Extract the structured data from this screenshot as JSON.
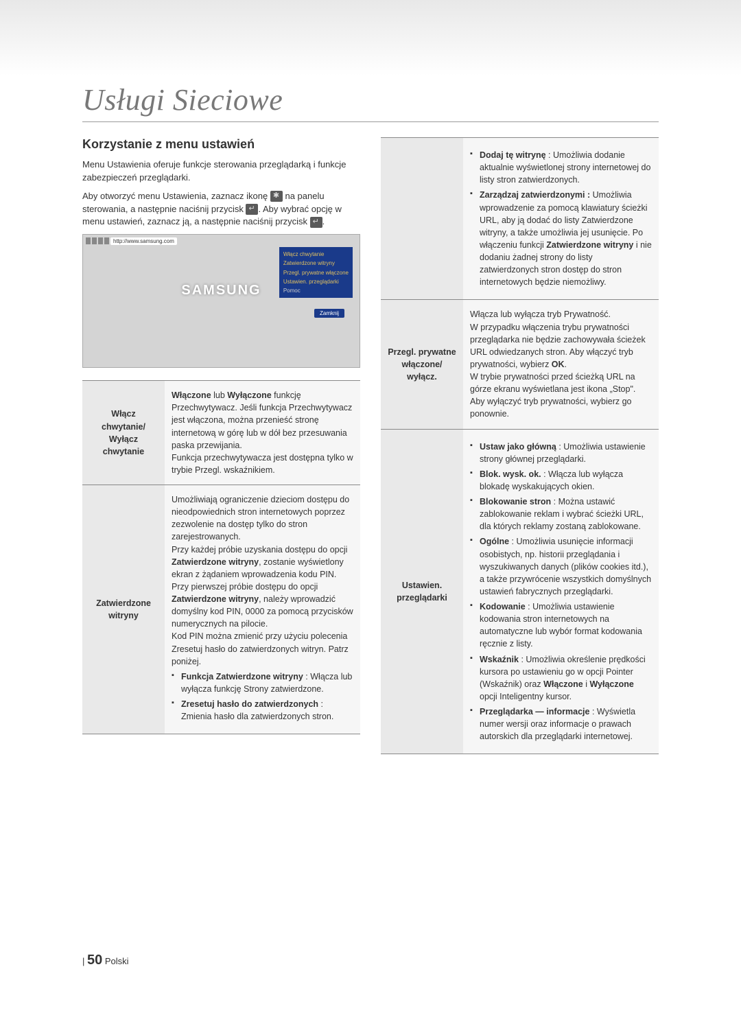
{
  "title": "Usługi Sieciowe",
  "subheading": "Korzystanie z menu ustawień",
  "intro": {
    "p1": "Menu Ustawienia oferuje funkcje sterowania przeglądarką i funkcje zabezpieczeń przeglądarki.",
    "p2a": "Aby otworzyć menu Ustawienia, zaznacz ikonę ",
    "p2b": " na panelu sterowania, a następnie naciśnij przycisk ",
    "p2c": ". Aby wybrać opcję w menu ustawień, zaznacz ją, a następnie naciśnij przycisk ",
    "p2d": "."
  },
  "browser": {
    "url": "http://www.samsung.com",
    "logo": "SAMSUNG",
    "menu_items": [
      "Włącz chwytanie",
      "Zatwierdzone witryny",
      "Przegl. prywatne włączone",
      "Ustawien. przeglądarki",
      "Pomoc"
    ],
    "close": "Zamknij"
  },
  "left_table": {
    "row1": {
      "label": "Włącz chwytanie/ Wyłącz chwytanie",
      "c1a": "Włączone",
      "c1b": " lub ",
      "c1c": "Wyłączone",
      "c1d": " funkcję Przechwytywacz. Jeśli funkcja Przechwytywacz jest włączona, można przenieść stronę internetową w górę lub w dół bez przesuwania paska przewijania.",
      "c2": "Funkcja przechwytywacza jest dostępna tylko w trybie Przegl. wskaźnikiem."
    },
    "row2": {
      "label": "Zatwierdzone witryny",
      "c1": "Umożliwiają ograniczenie dzieciom dostępu do nieodpowiednich stron internetowych poprzez zezwolenie na dostęp tylko do stron zarejestrowanych.",
      "c2a": "Przy każdej próbie uzyskania dostępu do opcji ",
      "c2b": "Zatwierdzone witryny",
      "c2c": ", zostanie wyświetlony ekran z żądaniem wprowadzenia kodu PIN. Przy pierwszej próbie dostępu do opcji ",
      "c2d": "Zatwierdzone witryny",
      "c2e": ", należy wprowadzić domyślny kod PIN, 0000 za pomocą przycisków numerycznych na pilocie.",
      "c3": "Kod PIN można zmienić przy użyciu polecenia Zresetuj hasło do zatwierdzonych witryn. Patrz poniżej.",
      "b1_label": "Funkcja Zatwierdzone witryny",
      "b1_text": " : Włącza lub wyłącza funkcję Strony zatwierdzone.",
      "b2_label": "Zresetuj hasło do zatwierdzonych",
      "b2_text": " : Zmienia hasło dla zatwierdzonych stron."
    }
  },
  "right_table": {
    "row1": {
      "label": "",
      "b1_label": "Dodaj tę witrynę",
      "b1_text": " : Umożliwia dodanie aktualnie wyświetlonej strony internetowej do listy stron zatwierdzonych.",
      "b2_label": "Zarządzaj zatwierdzonymi :",
      "b2_texta": " Umożliwia wprowadzenie za pomocą klawiatury ścieżki URL, aby ją dodać do listy Zatwierdzone witryny, a także umożliwia jej usunięcie. Po włączeniu funkcji ",
      "b2_textb": "Zatwierdzone witryny",
      "b2_textc": " i nie dodaniu żadnej strony do listy zatwierdzonych stron dostęp do stron internetowych będzie niemożliwy."
    },
    "row2": {
      "label": "Przegl. prywatne włączone/ wyłącz.",
      "c1": "Włącza lub wyłącza tryb Prywatność.",
      "c2a": "W przypadku włączenia trybu prywatności przeglądarka nie będzie zachowywała ścieżek URL odwiedzanych stron. Aby włączyć tryb prywatności, wybierz ",
      "c2b": "OK",
      "c2c": ".",
      "c3": "W trybie prywatności przed ścieżką URL na górze ekranu wyświetlana jest ikona „Stop\".",
      "c4": "Aby wyłączyć tryb prywatności, wybierz go ponownie."
    },
    "row3": {
      "label": "Ustawien. przeglądarki",
      "b1_label": "Ustaw jako główną",
      "b1_text": " : Umożliwia ustawienie strony głównej przeglądarki.",
      "b2_label": "Blok. wysk. ok.",
      "b2_text": " : Włącza lub wyłącza blokadę wyskakujących okien.",
      "b3_label": "Blokowanie stron",
      "b3_text": " : Można ustawić zablokowanie reklam i wybrać ścieżki URL, dla których reklamy zostaną zablokowane.",
      "b4_label": "Ogólne",
      "b4_text": " : Umożliwia usunięcie informacji osobistych, np. historii przeglądania i wyszukiwanych danych (plików cookies itd.), a także przywrócenie wszystkich domyślnych ustawień fabrycznych przeglądarki.",
      "b5_label": "Kodowanie",
      "b5_text": " : Umożliwia ustawienie kodowania stron internetowych na automatyczne lub wybór format kodowania ręcznie z listy.",
      "b6_label": "Wskaźnik",
      "b6_texta": " : Umożliwia określenie prędkości kursora po ustawieniu go w opcji Pointer (Wskaźnik) oraz ",
      "b6_textb": "Włączone",
      "b6_textc": " i ",
      "b6_textd": "Wyłączone",
      "b6_texte": " opcji Inteligentny kursor.",
      "b7_label": "Przeglądarka — informacje",
      "b7_text": " : Wyświetla numer wersji oraz informacje o prawach autorskich dla przeglądarki internetowej."
    }
  },
  "footer": {
    "bar": "|",
    "num": "50",
    "lang": "Polski"
  }
}
